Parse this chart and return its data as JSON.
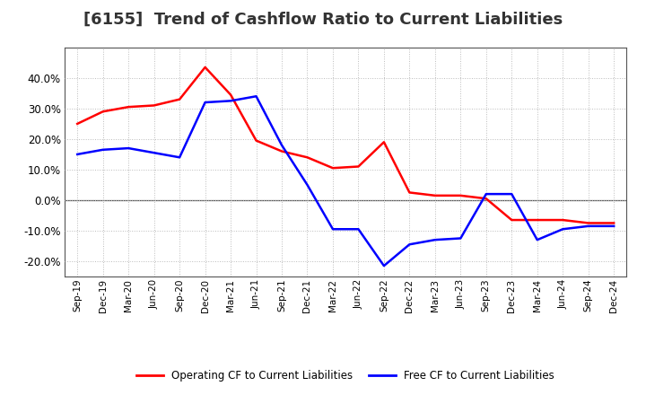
{
  "title": "[6155]  Trend of Cashflow Ratio to Current Liabilities",
  "x_labels": [
    "Sep-19",
    "Dec-19",
    "Mar-20",
    "Jun-20",
    "Sep-20",
    "Dec-20",
    "Mar-21",
    "Jun-21",
    "Sep-21",
    "Dec-21",
    "Mar-22",
    "Jun-22",
    "Sep-22",
    "Dec-22",
    "Mar-23",
    "Jun-23",
    "Sep-23",
    "Dec-23",
    "Mar-24",
    "Jun-24",
    "Sep-24",
    "Dec-24"
  ],
  "operating_cf": [
    0.25,
    0.29,
    0.305,
    0.31,
    0.33,
    0.435,
    0.345,
    0.195,
    0.16,
    0.14,
    0.105,
    0.11,
    0.19,
    0.025,
    0.015,
    0.015,
    0.005,
    -0.065,
    -0.065,
    -0.065,
    -0.075,
    -0.075
  ],
  "free_cf": [
    0.15,
    0.165,
    0.17,
    0.155,
    0.14,
    0.32,
    0.325,
    0.34,
    0.18,
    0.05,
    -0.095,
    -0.095,
    -0.215,
    -0.145,
    -0.13,
    -0.125,
    0.02,
    0.02,
    -0.13,
    -0.095,
    -0.085,
    -0.085
  ],
  "ylim": [
    -0.25,
    0.5
  ],
  "yticks": [
    -0.2,
    -0.1,
    0.0,
    0.1,
    0.2,
    0.3,
    0.4
  ],
  "operating_color": "#ff0000",
  "free_color": "#0000ff",
  "grid_color": "#bbbbbb",
  "background_color": "#ffffff",
  "title_fontsize": 13,
  "legend_label_op": "Operating CF to Current Liabilities",
  "legend_label_free": "Free CF to Current Liabilities"
}
